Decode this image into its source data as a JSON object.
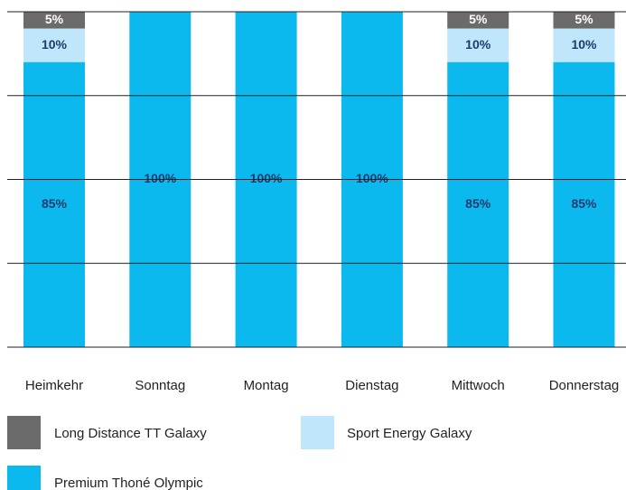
{
  "chart_data": {
    "type": "bar",
    "stacked": true,
    "categories": [
      "Heimkehr",
      "Sonntag",
      "Montag",
      "Dienstag",
      "Mittwoch",
      "Donnerstag"
    ],
    "series": [
      {
        "name": "Long Distance TT Galaxy",
        "color": "#6b6b6b",
        "values": [
          5,
          0,
          0,
          0,
          5,
          5
        ],
        "value_labels": [
          "5%",
          null,
          null,
          null,
          "5%",
          "5%"
        ]
      },
      {
        "name": "Sport Energy Galaxy",
        "color": "#bfe6fa",
        "values": [
          10,
          0,
          0,
          0,
          10,
          10
        ],
        "value_labels": [
          "10%",
          null,
          null,
          null,
          "10%",
          "10%"
        ]
      },
      {
        "name": "Premium Thoné Olympic",
        "color": "#0bb9ee",
        "values": [
          85,
          100,
          100,
          100,
          85,
          85
        ],
        "value_labels": [
          "85%",
          "100%",
          "100%",
          "100%",
          "85%",
          "85%"
        ]
      }
    ],
    "ylim": [
      0,
      100
    ],
    "yticks": [
      0,
      25,
      50,
      75,
      100
    ],
    "grid": true
  }
}
